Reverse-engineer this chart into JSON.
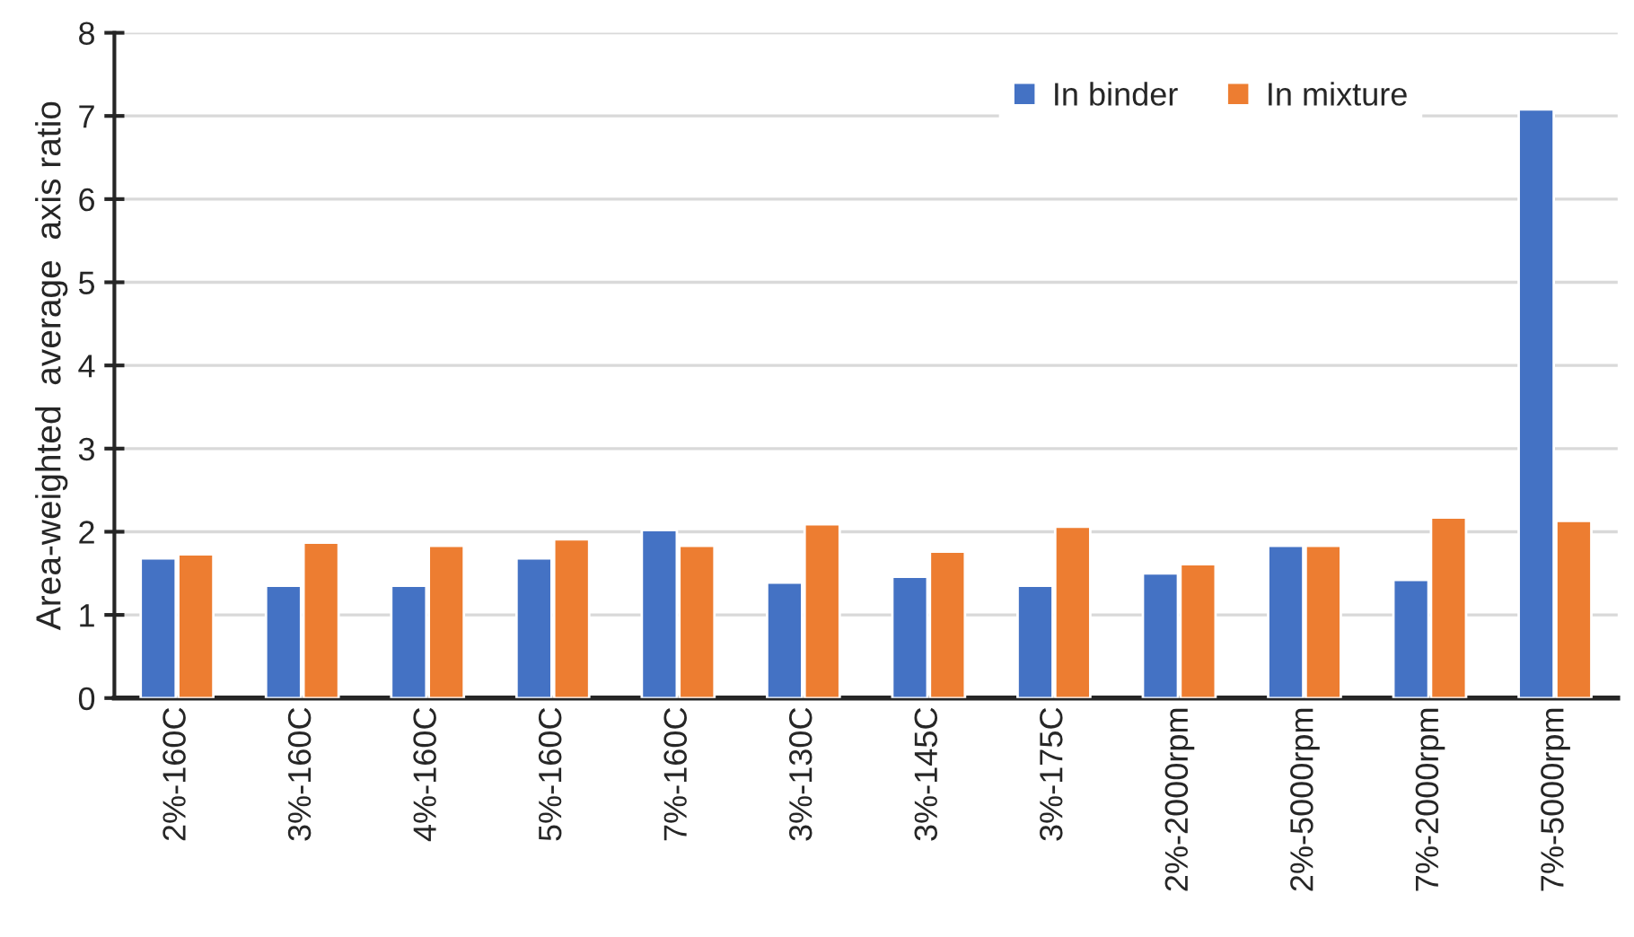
{
  "chart_data": {
    "type": "bar",
    "ylabel": "Area-weighted  average  axis ratio",
    "categories": [
      "2%-160C",
      "3%-160C",
      "4%-160C",
      "5%-160C",
      "7%-160C",
      "3%-130C",
      "3%-145C",
      "3%-175C",
      "2%-2000rpm",
      "2%-5000rpm",
      "7%-2000rpm",
      "7%-5000rpm"
    ],
    "series": [
      {
        "name": "In binder",
        "color": "#4472c4",
        "values": [
          1.68,
          1.35,
          1.35,
          1.68,
          2.02,
          1.39,
          1.46,
          1.35,
          1.5,
          1.83,
          1.42,
          7.08
        ]
      },
      {
        "name": "In mixture",
        "color": "#ed7d31",
        "values": [
          1.73,
          1.87,
          1.83,
          1.91,
          1.83,
          2.09,
          1.76,
          2.06,
          1.61,
          1.83,
          2.17,
          2.13
        ]
      }
    ],
    "ylim": [
      0,
      8
    ],
    "yticks": [
      0,
      1,
      2,
      3,
      4,
      5,
      6,
      7,
      8
    ],
    "grid": "y",
    "legend": "top right"
  }
}
